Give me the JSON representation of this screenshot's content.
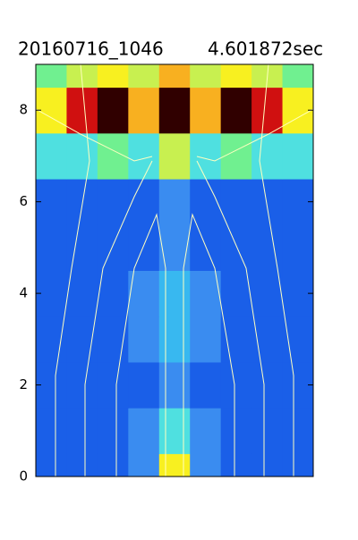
{
  "chart_data": {
    "type": "contour",
    "title": "20160716_1046",
    "subtitle": "4.601872sec",
    "x": [
      0,
      1,
      2,
      3,
      4,
      5,
      6,
      7,
      8
    ],
    "xlim": [
      -0.5,
      8.5
    ],
    "y": [
      0,
      1,
      2,
      3,
      4,
      5,
      6,
      7,
      8,
      9
    ],
    "ylim": [
      0,
      9
    ],
    "yticks": [
      0,
      2,
      4,
      6,
      8
    ],
    "z": [
      [
        0.1,
        0.1,
        0.1,
        0.15,
        0.6,
        0.15,
        0.1,
        0.1,
        0.1
      ],
      [
        0.1,
        0.1,
        0.1,
        0.15,
        0.3,
        0.15,
        0.1,
        0.1,
        0.1
      ],
      [
        0.1,
        0.1,
        0.1,
        0.1,
        0.15,
        0.1,
        0.1,
        0.1,
        0.1
      ],
      [
        0.1,
        0.1,
        0.1,
        0.15,
        0.25,
        0.15,
        0.1,
        0.1,
        0.1
      ],
      [
        0.1,
        0.1,
        0.1,
        0.2,
        0.25,
        0.2,
        0.1,
        0.1,
        0.1
      ],
      [
        0.1,
        0.1,
        0.1,
        0.1,
        0.15,
        0.1,
        0.1,
        0.1,
        0.1
      ],
      [
        0.1,
        0.1,
        0.1,
        0.1,
        0.15,
        0.1,
        0.1,
        0.1,
        0.1
      ],
      [
        0.3,
        0.35,
        0.45,
        0.3,
        0.5,
        0.3,
        0.45,
        0.35,
        0.3
      ],
      [
        0.55,
        0.85,
        0.95,
        0.7,
        1.0,
        0.7,
        0.95,
        0.85,
        0.55
      ],
      [
        0.4,
        0.5,
        0.6,
        0.5,
        0.7,
        0.5,
        0.6,
        0.5,
        0.4
      ]
    ],
    "levels": [
      0,
      0.15,
      0.22,
      0.3,
      0.38,
      0.46,
      0.55,
      0.65,
      0.75,
      0.85,
      0.93
    ],
    "colors": [
      "#1a5fe8",
      "#3a8cf0",
      "#38b8f0",
      "#4fe0e0",
      "#70f090",
      "#c8f050",
      "#f8f020",
      "#f8b020",
      "#f06010",
      "#d01010",
      "#300000"
    ],
    "grid": false
  }
}
